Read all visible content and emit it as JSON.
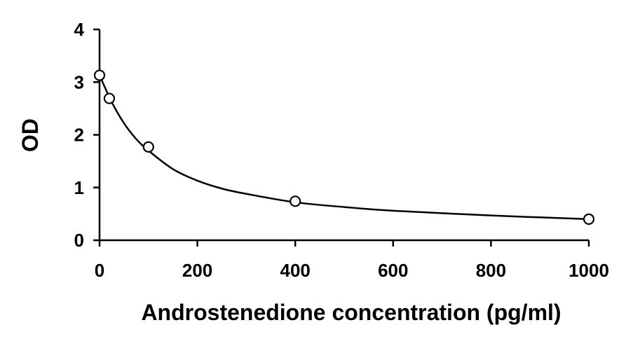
{
  "chart_data": {
    "type": "scatter",
    "title": "",
    "xlabel": "Androstenedione concentration (pg/ml)",
    "ylabel": "OD",
    "xlim": [
      0,
      1000
    ],
    "ylim": [
      0,
      4
    ],
    "x_ticks": [
      0,
      200,
      400,
      600,
      800,
      1000
    ],
    "y_ticks": [
      0,
      1,
      2,
      3,
      4
    ],
    "x_tick_labels": [
      "0",
      "200",
      "400",
      "600",
      "800",
      "1000"
    ],
    "y_tick_labels": [
      "0",
      "1",
      "2",
      "3",
      "4"
    ],
    "grid": false,
    "legend": "none",
    "series": [
      {
        "marker": "open-circle",
        "x": [
          0,
          20,
          100,
          400,
          1000
        ],
        "y": [
          3.13,
          2.69,
          1.77,
          0.74,
          0.4
        ]
      }
    ],
    "fit_curve": {
      "style": "smooth-line",
      "x": [
        0,
        25,
        50,
        75,
        100,
        150,
        200,
        250,
        300,
        400,
        500,
        600,
        800,
        1000
      ],
      "y": [
        3.13,
        2.62,
        2.22,
        1.92,
        1.7,
        1.35,
        1.13,
        0.98,
        0.88,
        0.72,
        0.63,
        0.56,
        0.47,
        0.4
      ]
    },
    "colors": {
      "axis": "#000000",
      "marker": "#000000",
      "curve": "#000000"
    }
  }
}
